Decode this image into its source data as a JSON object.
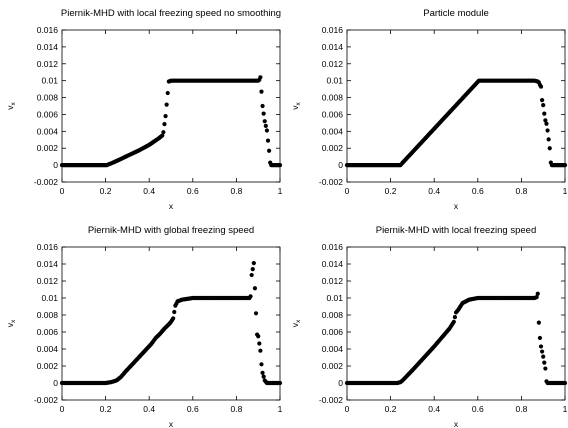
{
  "chart_data": [
    {
      "type": "scatter",
      "title": "Piernik-MHD with local freezing speed no smoothing",
      "xlabel": "x",
      "ylabel": "v",
      "ylabel_sub": "x",
      "xlim": [
        0,
        1
      ],
      "ylim": [
        -0.002,
        0.016
      ],
      "x_ticks": [
        "0",
        "0.2",
        "0.4",
        "0.6",
        "0.8",
        "1"
      ],
      "y_ticks": [
        "-0.002",
        "0",
        "0.002",
        "0.004",
        "0.006",
        "0.008",
        "0.01",
        "0.012",
        "0.014",
        "0.016"
      ],
      "grid": false,
      "series": [
        {
          "points": [
            [
              0.0,
              0
            ],
            [
              0.205,
              0
            ],
            [
              0.225,
              0.0002
            ],
            [
              0.26,
              0.0006
            ],
            [
              0.3,
              0.0011
            ],
            [
              0.35,
              0.0017
            ],
            [
              0.4,
              0.0024
            ],
            [
              0.44,
              0.0031
            ],
            [
              0.46,
              0.0035
            ],
            [
              0.465,
              0.0039
            ],
            [
              0.475,
              0.0058
            ],
            [
              0.49,
              0.0099
            ],
            [
              0.5,
              0.01
            ],
            [
              0.9,
              0.01
            ],
            [
              0.905,
              0.0101
            ],
            [
              0.91,
              0.0104
            ],
            [
              0.92,
              0.007
            ],
            [
              0.93,
              0.0052
            ],
            [
              0.94,
              0.0041
            ],
            [
              0.95,
              0.0017
            ],
            [
              0.955,
              0.0003
            ],
            [
              0.96,
              0
            ],
            [
              0.975,
              0
            ],
            [
              1.0,
              0
            ]
          ]
        }
      ]
    },
    {
      "type": "scatter",
      "title": "Particle module",
      "xlabel": "x",
      "ylabel": "v",
      "ylabel_sub": "x",
      "xlim": [
        0,
        1
      ],
      "ylim": [
        -0.002,
        0.016
      ],
      "x_ticks": [
        "0",
        "0.2",
        "0.4",
        "0.6",
        "0.8",
        "1"
      ],
      "y_ticks": [
        "-0.002",
        "0",
        "0.002",
        "0.004",
        "0.006",
        "0.008",
        "0.01",
        "0.012",
        "0.014",
        "0.016"
      ],
      "grid": false,
      "series": [
        {
          "points": [
            [
              0.0,
              0
            ],
            [
              0.245,
              0
            ],
            [
              0.605,
              0.01
            ],
            [
              0.86,
              0.01
            ],
            [
              0.875,
              0.0099
            ],
            [
              0.88,
              0.0098
            ],
            [
              0.885,
              0.0095
            ],
            [
              0.89,
              0.0093
            ],
            [
              0.895,
              0.0077
            ],
            [
              0.9,
              0.0071
            ],
            [
              0.905,
              0.0061
            ],
            [
              0.91,
              0.0053
            ],
            [
              0.915,
              0.0049
            ],
            [
              0.92,
              0.0041
            ],
            [
              0.93,
              0.002
            ],
            [
              0.935,
              0.0003
            ],
            [
              0.94,
              0
            ],
            [
              0.975,
              0
            ],
            [
              1.0,
              0
            ]
          ]
        }
      ]
    },
    {
      "type": "scatter",
      "title": "Piernik-MHD with global freezing speed",
      "xlabel": "x",
      "ylabel": "v",
      "ylabel_sub": "x",
      "xlim": [
        0,
        1
      ],
      "ylim": [
        -0.002,
        0.016
      ],
      "x_ticks": [
        "0",
        "0.2",
        "0.4",
        "0.6",
        "0.8",
        "1"
      ],
      "y_ticks": [
        "-0.002",
        "0",
        "0.002",
        "0.004",
        "0.006",
        "0.008",
        "0.01",
        "0.012",
        "0.014",
        "0.016"
      ],
      "grid": false,
      "series": [
        {
          "points": [
            [
              0.0,
              0
            ],
            [
              0.2,
              0
            ],
            [
              0.225,
              0.0001
            ],
            [
              0.25,
              0.0003
            ],
            [
              0.27,
              0.0007
            ],
            [
              0.29,
              0.0013
            ],
            [
              0.33,
              0.0024
            ],
            [
              0.37,
              0.0035
            ],
            [
              0.41,
              0.0046
            ],
            [
              0.43,
              0.0053
            ],
            [
              0.45,
              0.0058
            ],
            [
              0.47,
              0.0064
            ],
            [
              0.49,
              0.0069
            ],
            [
              0.5,
              0.0072
            ],
            [
              0.51,
              0.0076
            ],
            [
              0.52,
              0.0091
            ],
            [
              0.53,
              0.0096
            ],
            [
              0.55,
              0.0098
            ],
            [
              0.6,
              0.01
            ],
            [
              0.86,
              0.01
            ],
            [
              0.865,
              0.0102
            ],
            [
              0.87,
              0.0127
            ],
            [
              0.88,
              0.0141
            ],
            [
              0.89,
              0.0082
            ],
            [
              0.895,
              0.0057
            ],
            [
              0.9,
              0.0055
            ],
            [
              0.91,
              0.0038
            ],
            [
              0.915,
              0.0022
            ],
            [
              0.92,
              0.0012
            ],
            [
              0.93,
              0.0003
            ],
            [
              0.94,
              0
            ],
            [
              0.96,
              0
            ],
            [
              0.975,
              0
            ],
            [
              1.0,
              0
            ]
          ]
        }
      ]
    },
    {
      "type": "scatter",
      "title": "Piernik-MHD with local freezing speed",
      "xlabel": "x",
      "ylabel": "v",
      "ylabel_sub": "x",
      "xlim": [
        0,
        1
      ],
      "ylim": [
        -0.002,
        0.016
      ],
      "x_ticks": [
        "0",
        "0.2",
        "0.4",
        "0.6",
        "0.8",
        "1"
      ],
      "y_ticks": [
        "-0.002",
        "0",
        "0.002",
        "0.004",
        "0.006",
        "0.008",
        "0.01",
        "0.012",
        "0.014",
        "0.016"
      ],
      "grid": false,
      "series": [
        {
          "points": [
            [
              0.0,
              0
            ],
            [
              0.23,
              0
            ],
            [
              0.245,
              0.0001
            ],
            [
              0.255,
              0.0003
            ],
            [
              0.27,
              0.0007
            ],
            [
              0.3,
              0.0015
            ],
            [
              0.35,
              0.0029
            ],
            [
              0.4,
              0.0043
            ],
            [
              0.44,
              0.0055
            ],
            [
              0.47,
              0.0064
            ],
            [
              0.49,
              0.0072
            ],
            [
              0.5,
              0.0083
            ],
            [
              0.51,
              0.0086
            ],
            [
              0.53,
              0.0094
            ],
            [
              0.56,
              0.0098
            ],
            [
              0.6,
              0.01
            ],
            [
              0.86,
              0.01
            ],
            [
              0.87,
              0.0101
            ],
            [
              0.875,
              0.0105
            ],
            [
              0.88,
              0.0071
            ],
            [
              0.885,
              0.0053
            ],
            [
              0.89,
              0.0043
            ],
            [
              0.9,
              0.0031
            ],
            [
              0.91,
              0.0017
            ],
            [
              0.915,
              0.0002
            ],
            [
              0.92,
              0
            ],
            [
              0.96,
              0
            ],
            [
              0.975,
              0
            ],
            [
              1.0,
              0
            ]
          ]
        }
      ]
    }
  ]
}
